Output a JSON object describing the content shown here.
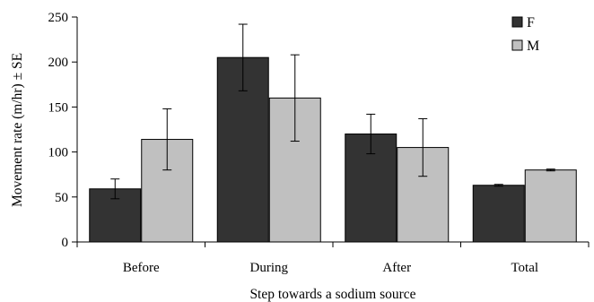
{
  "chart_data": {
    "type": "bar",
    "title": "",
    "xlabel": "Step towards a sodium source",
    "ylabel": "Movement rate (m/hr) ± SE",
    "categories": [
      "Before",
      "During",
      "After",
      "Total"
    ],
    "ylim": [
      0,
      250
    ],
    "yticks": [
      0,
      50,
      100,
      150,
      200,
      250
    ],
    "grid": false,
    "legend_position": "top-right",
    "series": [
      {
        "name": "F",
        "color": "#333333",
        "values": [
          59,
          205,
          120,
          63
        ],
        "errors": [
          11,
          37,
          22,
          1
        ]
      },
      {
        "name": "M",
        "color": "#c0c0c0",
        "values": [
          114,
          160,
          105,
          80
        ],
        "errors": [
          34,
          48,
          32,
          1
        ]
      }
    ]
  }
}
